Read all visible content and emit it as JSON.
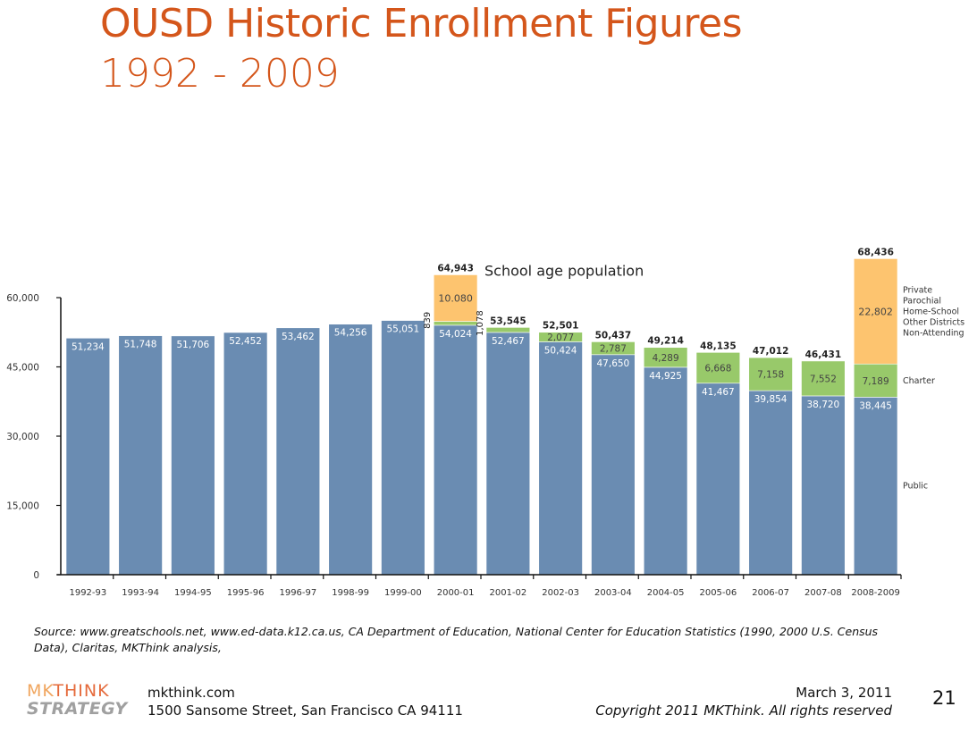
{
  "slide": {
    "title": "OUSD Historic Enrollment Figures",
    "subtitle": "1992 - 2009",
    "source_line1": "Source: www.greatschools.net, www.ed-data.k12.ca.us, CA Department of Education, National Center for Education Statistics (1990, 2000 U.S. Census",
    "source_line2": "Data), Claritas, MKThink analysis,",
    "footer": {
      "logo_top_a": "MK",
      "logo_top_b": "THINK",
      "logo_bottom": "STRATEGY",
      "website": "mkthink.com",
      "address": "1500 Sansome Street, San Francisco CA 94111",
      "date": "March 3, 2011",
      "copyright": "Copyright 2011 MKThink. All rights reserved",
      "page_number": "21"
    }
  },
  "colors": {
    "public": "#6A8CB2",
    "charter": "#98C96A",
    "other": "#FDC46F",
    "title": "#D4561B"
  },
  "chart_data": {
    "type": "bar",
    "stacked": true,
    "title": "OUSD Historic Enrollment Figures 1992 - 2009",
    "xlabel": "",
    "ylabel": "",
    "ylim": [
      0,
      60000
    ],
    "yticks": [
      0,
      15000,
      30000,
      45000,
      60000
    ],
    "ytick_labels": [
      "0",
      "15,000",
      "30,000",
      "45,000",
      "60,000"
    ],
    "grid": false,
    "categories": [
      "1992-93",
      "1993-94",
      "1994-95",
      "1995-96",
      "1996-97",
      "1998-99",
      "1999-00",
      "2000-01",
      "2001-02",
      "2002-03",
      "2003-04",
      "2004-05",
      "2005-06",
      "2006-07",
      "2007-08",
      "2008-2009"
    ],
    "series": [
      {
        "name": "Public",
        "values": [
          51234,
          51748,
          51706,
          52452,
          53462,
          54256,
          55051,
          54024,
          52467,
          50424,
          47650,
          44925,
          41467,
          39854,
          38720,
          38445
        ],
        "labels": [
          "51,234",
          "51,748",
          "51,706",
          "52,452",
          "53,462",
          "54,256",
          "55,051",
          "54,024",
          "52,467",
          "50,424",
          "47,650",
          "44,925",
          "41,467",
          "39,854",
          "38,720",
          "38,445"
        ]
      },
      {
        "name": "Charter",
        "values": [
          0,
          0,
          0,
          0,
          0,
          0,
          0,
          839,
          1078,
          2077,
          2787,
          4289,
          6668,
          7158,
          7552,
          7189
        ],
        "labels": [
          "",
          "",
          "",
          "",
          "",
          "",
          "",
          "839",
          "1,078",
          "2,077",
          "2,787",
          "4,289",
          "6,668",
          "7,158",
          "7,552",
          "7,189"
        ]
      },
      {
        "name": "Private / Parochial / Home-School / Other Districts / Non-Attending",
        "values": [
          0,
          0,
          0,
          0,
          0,
          0,
          0,
          10080,
          0,
          0,
          0,
          0,
          0,
          0,
          0,
          22802
        ],
        "labels": [
          "",
          "",
          "",
          "",
          "",
          "",
          "",
          "10.080",
          "",
          "",
          "",
          "",
          "",
          "",
          "",
          "22,802"
        ]
      }
    ],
    "totals": [
      "",
      "",
      "",
      "",
      "",
      "",
      "",
      "64,943",
      "53,545",
      "52,501",
      "50,437",
      "49,214",
      "48,135",
      "47,012",
      "46,431",
      "68,436"
    ],
    "annotations": [
      {
        "text": "School age population",
        "anchor": "2000-01"
      }
    ],
    "legend": {
      "placement": "right",
      "entries": [
        {
          "series": "other",
          "lines": [
            "Private",
            "Parochial",
            "Home-School",
            "Other Districts",
            "Non-Attending"
          ]
        },
        {
          "series": "charter",
          "lines": [
            "Charter"
          ]
        },
        {
          "series": "public",
          "lines": [
            "Public"
          ]
        }
      ]
    }
  }
}
